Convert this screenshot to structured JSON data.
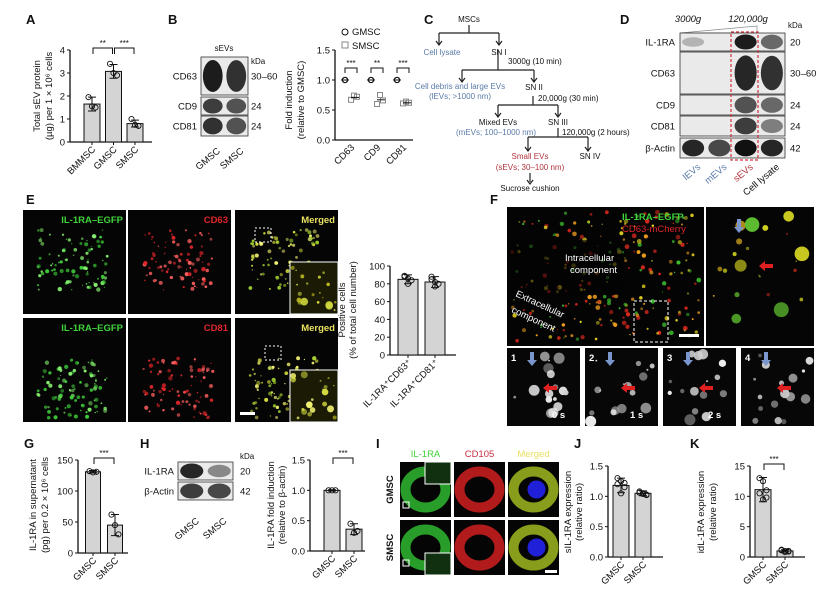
{
  "panels": {
    "A": {
      "label": "A",
      "ylabel_1": "Total sEV protein",
      "ylabel_2": "(µg) per 1 × 10⁶ cells",
      "chart_data": {
        "type": "bar",
        "categories": [
          "BMMSC",
          "GMSC",
          "SMSC"
        ],
        "values": [
          1.65,
          3.07,
          0.8
        ],
        "points": [
          [
            1.95,
            1.55,
            1.5
          ],
          [
            3.4,
            3.0,
            2.9
          ],
          [
            1.0,
            0.75,
            0.7
          ]
        ],
        "errors": [
          0.3,
          0.3,
          0.15
        ],
        "ylim": [
          0,
          4
        ],
        "yticks": [
          "0",
          "1",
          "2",
          "3",
          "4"
        ],
        "significance": [
          {
            "pair": [
              0,
              1
            ],
            "label": "**"
          },
          {
            "pair": [
              1,
              2
            ],
            "label": "***"
          }
        ]
      }
    },
    "B": {
      "label": "B",
      "blot": {
        "title": "sEVs",
        "kda_label": "kDa",
        "rows": [
          {
            "name": "CD63",
            "kda": "30–60"
          },
          {
            "name": "CD9",
            "kda": "24"
          },
          {
            "name": "CD81",
            "kda": "24"
          }
        ],
        "lanes": [
          "GMSC",
          "SMSC"
        ]
      },
      "ylabel_1": "Fold induction",
      "ylabel_2": "(relative to GMSC)",
      "chart_data": {
        "type": "scatter",
        "categories": [
          "CD63",
          "CD9",
          "CD81"
        ],
        "series": [
          {
            "name": "GMSC",
            "marker": "circle",
            "values": [
              [
                1.0,
                1.0,
                1.0
              ],
              [
                1.0,
                1.0,
                1.0
              ],
              [
                1.0,
                1.0,
                1.0
              ]
            ],
            "means": [
              1.0,
              1.0,
              1.0
            ]
          },
          {
            "name": "SMSC",
            "marker": "square",
            "values": [
              [
                0.67,
                0.74,
                0.72
              ],
              [
                0.6,
                0.75,
                0.66
              ],
              [
                0.61,
                0.64,
                0.62
              ]
            ],
            "means": [
              0.71,
              0.67,
              0.62
            ]
          }
        ],
        "ylim": [
          0,
          1.5
        ],
        "yticks": [
          "0.0",
          "0.5",
          "1.0",
          "1.5"
        ],
        "significance": [
          "***",
          "**",
          "***"
        ],
        "legend": "top"
      }
    },
    "C": {
      "label": "C",
      "nodes": {
        "mscs": "MSCs",
        "cell_lysate": "Cell lysate",
        "sn1": "SN I",
        "step1": "3000g (10 min)",
        "debris": "Cell debris and large EVs",
        "debris_sub": "(lEVs; >1000 nm)",
        "sn2": "SN II",
        "step2": "20,000g (30 min)",
        "mixed": "Mixed EVs",
        "mixed_sub": "(mEVs; 100–1000 nm)",
        "sn3": "SN III",
        "step3": "120,000g (2 hours)",
        "small": "Small EVs",
        "small_sub": "(sEVs; 30–100 nm)",
        "sn4": "SN IV",
        "sucrose": "Sucrose cushion"
      }
    },
    "D": {
      "label": "D",
      "header_left": "3000g",
      "header_right": "120,000g",
      "kda_label": "kDa",
      "rows": [
        {
          "name": "IL-1RA",
          "kda": "20"
        },
        {
          "name": "CD63",
          "kda": "30–60"
        },
        {
          "name": "CD9",
          "kda": "24"
        },
        {
          "name": "CD81",
          "kda": "24"
        },
        {
          "name": "β-Actin",
          "kda": "42"
        }
      ],
      "lanes": [
        "lEVs",
        "mEVs",
        "sEVs",
        "Cell lysate"
      ],
      "highlight_color": "#d0303a"
    },
    "E": {
      "label": "E",
      "rows": [
        {
          "green": "IL-1RA–EGFP",
          "red": "CD63",
          "merged": "Merged"
        },
        {
          "green": "IL-1RA–EGFP",
          "red": "CD81",
          "merged": "Merged"
        }
      ],
      "ylabel_1": "Positive cells",
      "ylabel_2": "(% of total cell number)",
      "chart_data": {
        "type": "bar",
        "categories": [
          "IL-1RA⁺CD63⁺",
          "IL-1RA⁺CD81⁺"
        ],
        "values": [
          85,
          82
        ],
        "points": [
          [
            88,
            80,
            84,
            89,
            86
          ],
          [
            88,
            77,
            80,
            85,
            82
          ]
        ],
        "errors": [
          5,
          6
        ],
        "ylim": [
          0,
          100
        ],
        "yticks": [
          "0",
          "20",
          "40",
          "60",
          "80",
          "100"
        ]
      }
    },
    "F": {
      "label": "F",
      "legend_green": "IL-1RA–EGFP",
      "legend_red": "CD63-mCherry",
      "intracellular_1": "Intracellular",
      "intracellular_2": "component",
      "extracellular_1": "Extracellular",
      "extracellular_2": "component",
      "frames": [
        {
          "num": "1",
          "time": "0 s"
        },
        {
          "num": "2",
          "time": "1 s"
        },
        {
          "num": "3",
          "time": "2 s"
        },
        {
          "num": "4",
          "time": ""
        }
      ]
    },
    "G": {
      "label": "G",
      "ylabel_1": "IL-1RA in supernatant",
      "ylabel_2": "(pg) per 0.2 × 10⁶ cells",
      "chart_data": {
        "type": "bar",
        "categories": [
          "GMSC",
          "SMSC"
        ],
        "values": [
          131,
          45
        ],
        "points": [
          [
            132,
            130,
            131
          ],
          [
            62,
            45,
            30
          ]
        ],
        "errors": [
          2,
          17
        ],
        "ylim": [
          0,
          150
        ],
        "yticks": [
          "0",
          "50",
          "100",
          "150"
        ],
        "significance": [
          {
            "pair": [
              0,
              1
            ],
            "label": "***"
          }
        ]
      }
    },
    "H": {
      "label": "H",
      "blot": {
        "kda_label": "kDa",
        "rows": [
          {
            "name": "IL-1RA",
            "kda": "20"
          },
          {
            "name": "β-Actin",
            "kda": "42"
          }
        ],
        "lanes": [
          "GMSC",
          "SMSC"
        ]
      },
      "ylabel_1": "IL-1RA fold induction",
      "ylabel_2": "(relative to  β-actin)",
      "chart_data": {
        "type": "bar",
        "categories": [
          "GMSC",
          "SMSC"
        ],
        "values": [
          1.0,
          0.36
        ],
        "points": [
          [
            1.0,
            1.0,
            1.0
          ],
          [
            0.45,
            0.3,
            0.33
          ]
        ],
        "errors": [
          0.01,
          0.09
        ],
        "ylim": [
          0,
          1.5
        ],
        "yticks": [
          "0.0",
          "0.5",
          "1.0",
          "1.5"
        ],
        "significance": [
          {
            "pair": [
              0,
              1
            ],
            "label": "***"
          }
        ]
      }
    },
    "I": {
      "label": "I",
      "columns": [
        "IL-1RA",
        "CD105",
        "Merged"
      ],
      "rows": [
        "GMSC",
        "SMSC"
      ]
    },
    "J": {
      "label": "J",
      "ylabel_1": "sIL-1RA expression",
      "ylabel_2": "(relative ratio)",
      "chart_data": {
        "type": "bar",
        "categories": [
          "GMSC",
          "SMSC"
        ],
        "values": [
          1.18,
          1.05
        ],
        "points": [
          [
            1.3,
            1.25,
            1.15,
            1.2,
            1.05,
            1.22
          ],
          [
            1.08,
            1.05,
            1.02,
            1.06,
            1.04,
            1.03
          ]
        ],
        "errors": [
          0.12,
          0.04
        ],
        "ylim": [
          0,
          1.5
        ],
        "yticks": [
          "0.0",
          "0.5",
          "1.0",
          "1.5"
        ]
      }
    },
    "K": {
      "label": "K",
      "ylabel_1": "idL-1RA expression",
      "ylabel_2": "(relative ratio)",
      "chart_data": {
        "type": "bar",
        "categories": [
          "GMSC",
          "SMSC"
        ],
        "values": [
          11.1,
          1.0
        ],
        "points": [
          [
            13,
            12.5,
            11,
            10.5,
            9.5,
            9.8
          ],
          [
            1.2,
            1.0,
            0.9,
            1.1,
            0.8,
            1.0
          ]
        ],
        "errors": [
          2.0,
          0.2
        ],
        "ylim": [
          0,
          15
        ],
        "yticks": [
          "0",
          "5",
          "10",
          "15"
        ],
        "significance": [
          {
            "pair": [
              0,
              1
            ],
            "label": "***"
          }
        ]
      }
    }
  },
  "colors": {
    "bar_fill": "#d4d4d4",
    "green_channel": "#3fd23a",
    "red_channel": "#e0262a",
    "merged_label": "#e8e060",
    "blue_text": "#5a7aa8",
    "red_text": "#b0343c",
    "arrow_blue": "#7a96cc",
    "arrow_red": "#e02020"
  }
}
